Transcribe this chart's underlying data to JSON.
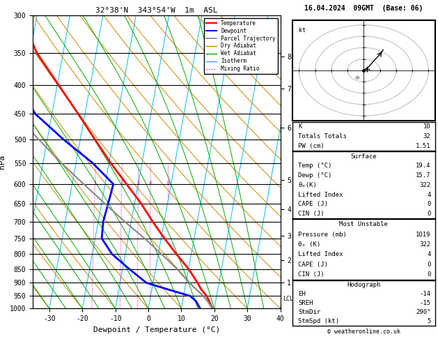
{
  "title_left": "32°38'N  343°54'W  1m  ASL",
  "title_right": "16.04.2024  09GMT  (Base: 06)",
  "xlabel": "Dewpoint / Temperature (°C)",
  "ylabel_left": "hPa",
  "pmin": 300,
  "pmax": 1000,
  "xlim": [
    -35,
    40
  ],
  "temp_profile": {
    "pressure": [
      1000,
      970,
      950,
      925,
      900,
      850,
      800,
      750,
      700,
      650,
      600,
      550,
      500,
      450,
      400,
      350,
      300
    ],
    "temp": [
      19.4,
      18.0,
      17.0,
      15.0,
      13.5,
      10.0,
      5.5,
      1.0,
      -3.5,
      -8.0,
      -13.5,
      -19.5,
      -25.5,
      -32.0,
      -39.5,
      -48.0,
      -55.0
    ],
    "color": "#ff0000",
    "lw": 2.0
  },
  "dewp_profile": {
    "pressure": [
      1000,
      970,
      950,
      925,
      900,
      850,
      800,
      750,
      700,
      650,
      600,
      550,
      500,
      450,
      400,
      350,
      300
    ],
    "dewp": [
      15.7,
      14.0,
      12.0,
      5.0,
      -2.0,
      -8.0,
      -14.0,
      -18.0,
      -18.5,
      -18.0,
      -17.5,
      -25.0,
      -35.0,
      -45.0,
      -52.0,
      -58.0,
      -62.0
    ],
    "color": "#0000ff",
    "lw": 2.0
  },
  "parcel_profile": {
    "pressure": [
      1000,
      970,
      950,
      925,
      900,
      850,
      800,
      750,
      700,
      650,
      600,
      550,
      500,
      450,
      400,
      350,
      300
    ],
    "temp": [
      19.4,
      17.5,
      16.0,
      13.5,
      11.0,
      6.5,
      1.0,
      -5.0,
      -12.0,
      -19.0,
      -26.5,
      -34.5,
      -42.5,
      -51.5,
      -60.0,
      -68.0,
      -73.0
    ],
    "color": "#888888",
    "lw": 1.5
  },
  "isotherm_color": "#00bbff",
  "isotherm_lw": 0.7,
  "dry_adiabat_color": "#cc8800",
  "dry_adiabat_lw": 0.7,
  "wet_adiabat_color": "#00aa00",
  "wet_adiabat_lw": 0.7,
  "mixing_ratio_color": "#ff00aa",
  "mixing_ratio_lw": 0.7,
  "mixing_ratio_values": [
    1,
    2,
    3,
    4,
    6,
    8,
    10,
    15,
    20,
    25
  ],
  "pressure_levels": [
    300,
    350,
    400,
    450,
    500,
    550,
    600,
    650,
    700,
    750,
    800,
    850,
    900,
    950,
    1000
  ],
  "km_ticks": [
    1,
    2,
    3,
    4,
    5,
    6,
    7,
    8
  ],
  "km_pressures": [
    899,
    820,
    741,
    665,
    590,
    476,
    405,
    355
  ],
  "lcl_pressure": 962,
  "skew_factor": 13.5,
  "legend_items": [
    {
      "label": "Temperature",
      "color": "#ff0000",
      "lw": 1.5,
      "ls": "solid"
    },
    {
      "label": "Dewpoint",
      "color": "#0000ff",
      "lw": 1.5,
      "ls": "solid"
    },
    {
      "label": "Parcel Trajectory",
      "color": "#888888",
      "lw": 1.2,
      "ls": "solid"
    },
    {
      "label": "Dry Adiabat",
      "color": "#cc8800",
      "lw": 1.0,
      "ls": "solid"
    },
    {
      "label": "Wet Adiabat",
      "color": "#00aa00",
      "lw": 1.0,
      "ls": "solid"
    },
    {
      "label": "Isotherm",
      "color": "#00bbff",
      "lw": 1.0,
      "ls": "solid"
    },
    {
      "label": "Mixing Ratio",
      "color": "#ff00aa",
      "lw": 1.0,
      "ls": "dotted"
    }
  ],
  "info_K": "10",
  "info_TT": "32",
  "info_PW": "1.51",
  "surf_temp": "19.4",
  "surf_dewp": "15.7",
  "surf_theta": "322",
  "surf_li": "4",
  "surf_cape": "0",
  "surf_cin": "0",
  "mu_press": "1019",
  "mu_theta": "322",
  "mu_li": "4",
  "mu_cape": "0",
  "mu_cin": "0",
  "hd_eh": "-14",
  "hd_sreh": "-15",
  "hd_stmdir": "290°",
  "hd_stmspd": "5",
  "copyright": "© weatheronline.co.uk"
}
